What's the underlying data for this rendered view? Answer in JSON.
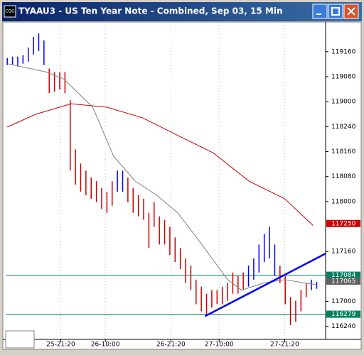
{
  "window": {
    "title": "TYAAU3 - US Ten Year Note - Combined, Sep 03, 15 Min",
    "icon": "CQG"
  },
  "chart_data": {
    "type": "ohlc",
    "xlim": [
      -0.3,
      60.7
    ],
    "xticks": [
      {
        "value": 10.2,
        "label": "25-21:20"
      },
      {
        "value": 18.7,
        "label": "26-10:00"
      },
      {
        "value": 31.2,
        "label": "26-21:20"
      },
      {
        "value": 40.4,
        "label": "27-10:00"
      },
      {
        "value": 52.9,
        "label": "27-21:20"
      }
    ],
    "ylim": [
      116.62,
      119.79
    ],
    "yticks": [
      {
        "value": 119.5,
        "label": "119160"
      },
      {
        "value": 119.25,
        "label": "119080"
      },
      {
        "value": 119.0,
        "label": "119000"
      },
      {
        "value": 118.75,
        "label": "118240"
      },
      {
        "value": 118.5,
        "label": "118160"
      },
      {
        "value": 118.25,
        "label": "118080"
      },
      {
        "value": 118.0,
        "label": "118000"
      },
      {
        "value": 117.5,
        "label": "117160"
      },
      {
        "value": 117.0,
        "label": "117000"
      },
      {
        "value": 116.75,
        "label": "116240"
      }
    ],
    "high": [
      119.437,
      119.451,
      119.451,
      119.465,
      119.542,
      119.648,
      119.683,
      119.613,
      119.331,
      119.296,
      119.296,
      119.296,
      119.014,
      118.521,
      118.38,
      118.31,
      118.239,
      118.204,
      118.134,
      118.099,
      118.204,
      118.31,
      118.31,
      118.239,
      118.134,
      118.063,
      118.028,
      117.887,
      117.993,
      117.852,
      117.817,
      117.746,
      117.641,
      117.535,
      117.43,
      117.359,
      117.218,
      117.148,
      117.077,
      117.113,
      117.113,
      117.148,
      117.183,
      117.289,
      117.254,
      117.289,
      117.359,
      117.43,
      117.57,
      117.676,
      117.746,
      117.57,
      117.359,
      117.254,
      117.042,
      117.007,
      117.113,
      117.183,
      117.218,
      117.197
    ],
    "low": [
      119.366,
      119.366,
      119.352,
      119.38,
      119.401,
      119.472,
      119.507,
      119.366,
      119.085,
      119.099,
      119.12,
      119.085,
      118.31,
      118.169,
      118.099,
      118.063,
      118.028,
      117.993,
      117.923,
      117.887,
      117.958,
      118.099,
      118.099,
      117.993,
      117.887,
      117.852,
      117.817,
      117.535,
      117.746,
      117.57,
      117.57,
      117.465,
      117.394,
      117.324,
      117.183,
      117.113,
      116.972,
      116.901,
      116.866,
      116.937,
      116.972,
      116.972,
      117.007,
      117.077,
      117.077,
      117.113,
      117.148,
      117.218,
      117.289,
      117.394,
      117.43,
      117.254,
      117.183,
      116.972,
      116.761,
      116.796,
      116.901,
      117.042,
      117.113,
      117.127
    ],
    "colors": [
      "#0000ff",
      "#0000ff",
      "#0000ff",
      "#0000ff",
      "#0000ff",
      "#0000ff",
      "#0000ff",
      "#0000ff",
      "#cc0000",
      "#cc0000",
      "#cc0000",
      "#cc0000",
      "#cc0000",
      "#cc0000",
      "#cc0000",
      "#cc0000",
      "#cc0000",
      "#cc0000",
      "#cc0000",
      "#cc0000",
      "#cc0000",
      "#0000ff",
      "#0000ff",
      "#cc0000",
      "#cc0000",
      "#cc0000",
      "#cc0000",
      "#cc0000",
      "#cc0000",
      "#cc0000",
      "#cc0000",
      "#cc0000",
      "#cc0000",
      "#cc0000",
      "#cc0000",
      "#cc0000",
      "#cc0000",
      "#cc0000",
      "#cc0000",
      "#cc0000",
      "#cc0000",
      "#cc0000",
      "#cc0000",
      "#cc0000",
      "#cc0000",
      "#cc0000",
      "#0000ff",
      "#0000ff",
      "#0000ff",
      "#0000ff",
      "#0000ff",
      "#0000ff",
      "#cc0000",
      "#cc0000",
      "#cc0000",
      "#cc0000",
      "#cc0000",
      "#cc0000",
      "#0000ff",
      "#0000ff"
    ],
    "series": [
      {
        "color": "#808080",
        "x": [
          0,
          7.5,
          10.8,
          16.3,
          20.3,
          24.4,
          28.5,
          32.5,
          36.6,
          42,
          44.7,
          48.8,
          52.9,
          56.9,
          59
        ],
        "values": [
          119.38,
          119.296,
          119.225,
          118.944,
          118.451,
          118.204,
          118.063,
          117.887,
          117.606,
          117.218,
          117.113,
          117.183,
          117.218,
          117.183,
          117.169
        ]
      },
      {
        "color": "#cc0000",
        "x": [
          0,
          5.4,
          12.2,
          19,
          25.8,
          32.5,
          39.3,
          46.1,
          52.9,
          58.3
        ],
        "values": [
          118.746,
          118.873,
          118.979,
          118.944,
          118.838,
          118.662,
          118.486,
          118.204,
          118.028,
          117.761
        ]
      }
    ],
    "trendline": {
      "color": "#0000ff",
      "x": [
        37.7,
        60.7
      ],
      "values": [
        116.852,
        117.479
      ]
    },
    "hlines": [
      {
        "value": 117.2625,
        "color": "#008060"
      },
      {
        "value": 116.872,
        "color": "#008060"
      }
    ],
    "price_labels": [
      {
        "value": 117.78,
        "label": "117250",
        "color": "#cc0000"
      },
      {
        "value": 117.2625,
        "label": "117084",
        "color": "#008060"
      },
      {
        "value": 117.203,
        "label": "117065",
        "color": "#606060"
      },
      {
        "value": 116.872,
        "label": "116279",
        "color": "#008060"
      }
    ]
  }
}
